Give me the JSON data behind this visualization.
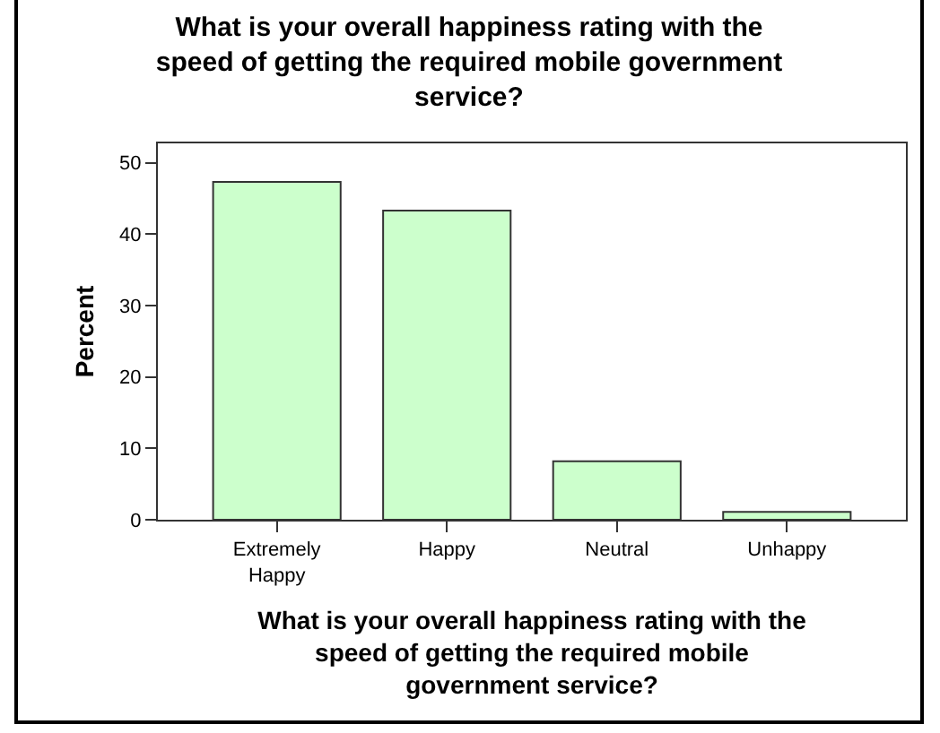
{
  "chart_data": {
    "type": "bar",
    "title": "What is your overall happiness rating with the speed of getting the required mobile government service?",
    "xlabel": "What is your overall happiness rating with the speed of getting the required mobile government service?",
    "ylabel": "Percent",
    "categories": [
      "Extremely Happy",
      "Happy",
      "Neutral",
      "Unhappy"
    ],
    "values": [
      47.3,
      43.3,
      8.2,
      1.1
    ],
    "color": "#ccffcc",
    "ylim": [
      0,
      52.7
    ],
    "yticks": [
      0,
      10,
      20,
      30,
      40,
      50
    ],
    "grid": false
  }
}
